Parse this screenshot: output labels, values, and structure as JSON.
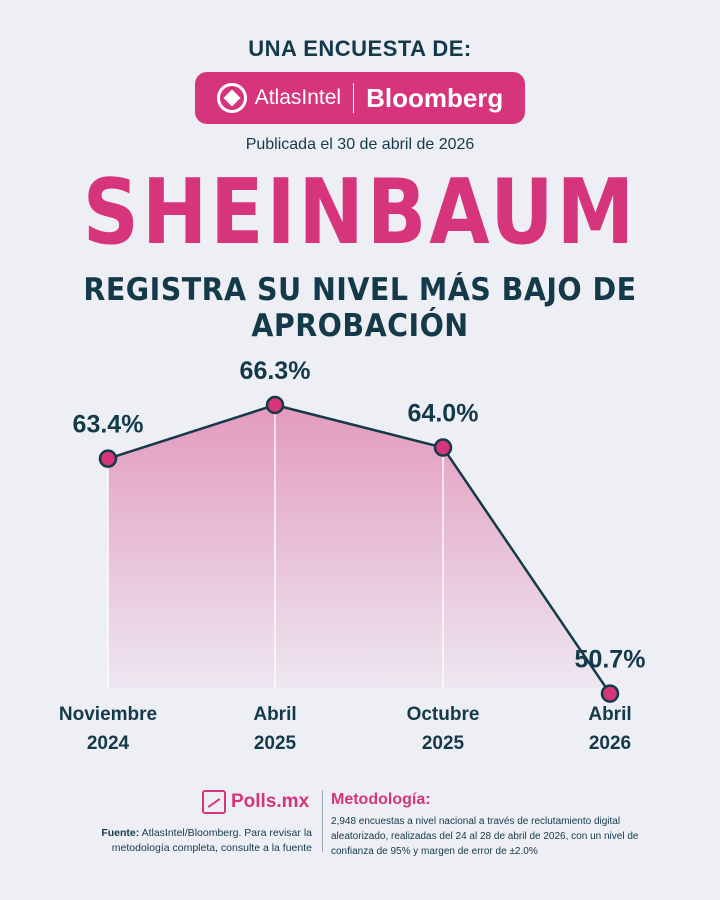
{
  "header": {
    "survey_label": "UNA ENCUESTA DE:",
    "partner_1": "AtlasIntel",
    "partner_2": "Bloomberg",
    "published": "Publicada el 30 de abril de 2026"
  },
  "headline": "SHEINBAUM",
  "subheadline": "REGISTRA SU NIVEL MÁS BAJO DE APROBACIÓN",
  "chart_data": {
    "type": "area",
    "categories": [
      "Noviembre 2024",
      "Abril 2025",
      "Octubre 2025",
      "Abril 2026"
    ],
    "category_lines": [
      [
        "Noviembre",
        "2024"
      ],
      [
        "Abril",
        "2025"
      ],
      [
        "Octubre",
        "2025"
      ],
      [
        "Abril",
        "2026"
      ]
    ],
    "values": [
      63.4,
      66.3,
      64.0,
      50.7
    ],
    "data_labels": [
      "63.4%",
      "66.3%",
      "64.0%",
      "50.7%"
    ],
    "colors": {
      "line": "#143a4a",
      "point": "#d6347b",
      "fill": "#d6347b"
    }
  },
  "footer": {
    "brand": "Polls.mx",
    "source_label": "Fuente:",
    "source_text": "AtlasIntel/Bloomberg. Para revisar la metodología completa, consulte a la fuente",
    "methodology_title": "Metodología:",
    "methodology_text": "2,948 encuestas a nivel nacional a través de reclutamiento digital aleatorizado, realizadas del 24 al 28 de abril de 2026, con un nivel de confianza de 95% y margen de error de ±2.0%"
  }
}
